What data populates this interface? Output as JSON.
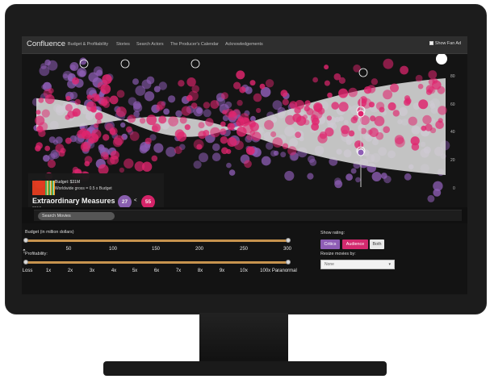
{
  "app": {
    "title": "Confluence"
  },
  "nav": {
    "items": [
      {
        "label": "Budget & Profitability"
      },
      {
        "label": "Stories"
      },
      {
        "label": "Search Actors"
      },
      {
        "label": "The Producer's Calendar"
      },
      {
        "label": "Acknowledgements"
      }
    ],
    "fan_ad_label": "Show Fan Ad",
    "fan_ad_checked": true
  },
  "chart": {
    "y_ticks": [
      "80",
      "60",
      "40",
      "20",
      "0"
    ],
    "colors": {
      "critics": "#8e5db5",
      "audience": "#e0256e",
      "band": "#d6d6d6",
      "background": "#141414"
    }
  },
  "movie": {
    "budget": "Budget: $31M",
    "gross": "Worldwide gross = 0.5 x Budget",
    "title": "Extraordinary Measures",
    "year": "2010",
    "critic_score": "27",
    "comparison": "<",
    "audience_score": "55"
  },
  "search": {
    "placeholder": "Search Movies"
  },
  "budget_slider": {
    "label": "Budget (in million dollars)",
    "ticks": [
      "50",
      "100",
      "150",
      "200",
      "250",
      "300"
    ],
    "range": [
      0,
      300
    ]
  },
  "profit_slider": {
    "label": "Profitability:",
    "ticks": [
      "Loss",
      "1x",
      "2x",
      "3x",
      "4x",
      "5x",
      "6x",
      "7x",
      "8x",
      "9x",
      "10x",
      "100x Paranormal"
    ]
  },
  "rating": {
    "label": "Show rating:",
    "options": [
      "Critics",
      "Audience",
      "Both"
    ]
  },
  "resize": {
    "label": "Resize movies by:",
    "value": "None"
  }
}
